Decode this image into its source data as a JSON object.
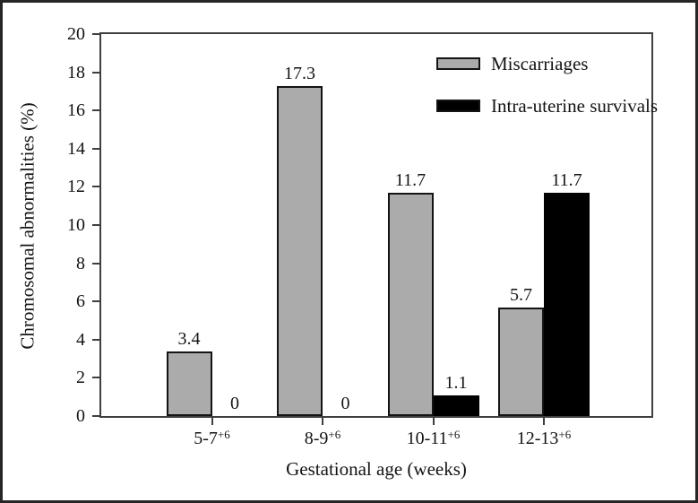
{
  "chart_data": {
    "type": "bar",
    "title": "",
    "categories": [
      "5-7+6",
      "8-9+6",
      "10-11+6",
      "12-13+6"
    ],
    "categories_display": [
      {
        "base": "5-7",
        "sup": "+6"
      },
      {
        "base": "8-9",
        "sup": "+6"
      },
      {
        "base": "10-11",
        "sup": "+6"
      },
      {
        "base": "12-13",
        "sup": "+6"
      }
    ],
    "series": [
      {
        "name": "Miscarriages",
        "color": "#ababab",
        "values": [
          3.4,
          17.3,
          11.7,
          5.7
        ],
        "value_labels": [
          "3.4",
          "17.3",
          "11.7",
          "5.7"
        ]
      },
      {
        "name": "Intra-uterine survivals",
        "color": "#000000",
        "values": [
          0,
          0,
          1.1,
          11.7
        ],
        "value_labels": [
          "0",
          "0",
          "1.1",
          "11.7"
        ]
      }
    ],
    "xlabel": "Gestational age (weeks)",
    "ylabel": "Chromosomal abnormalities (%)",
    "ylim": [
      0,
      20
    ],
    "yticks": [
      0,
      2,
      4,
      6,
      8,
      10,
      12,
      14,
      16,
      18,
      20
    ],
    "grid": false,
    "legend_position": "top-right",
    "value_labels_shown": true
  },
  "colors": {
    "axis": "#3f3f3f",
    "text": "#141414",
    "bar_border": "#141414",
    "gray_fill": "#ababab",
    "black_fill": "#000000",
    "background": "#ffffff",
    "outer_border": "#262626"
  }
}
